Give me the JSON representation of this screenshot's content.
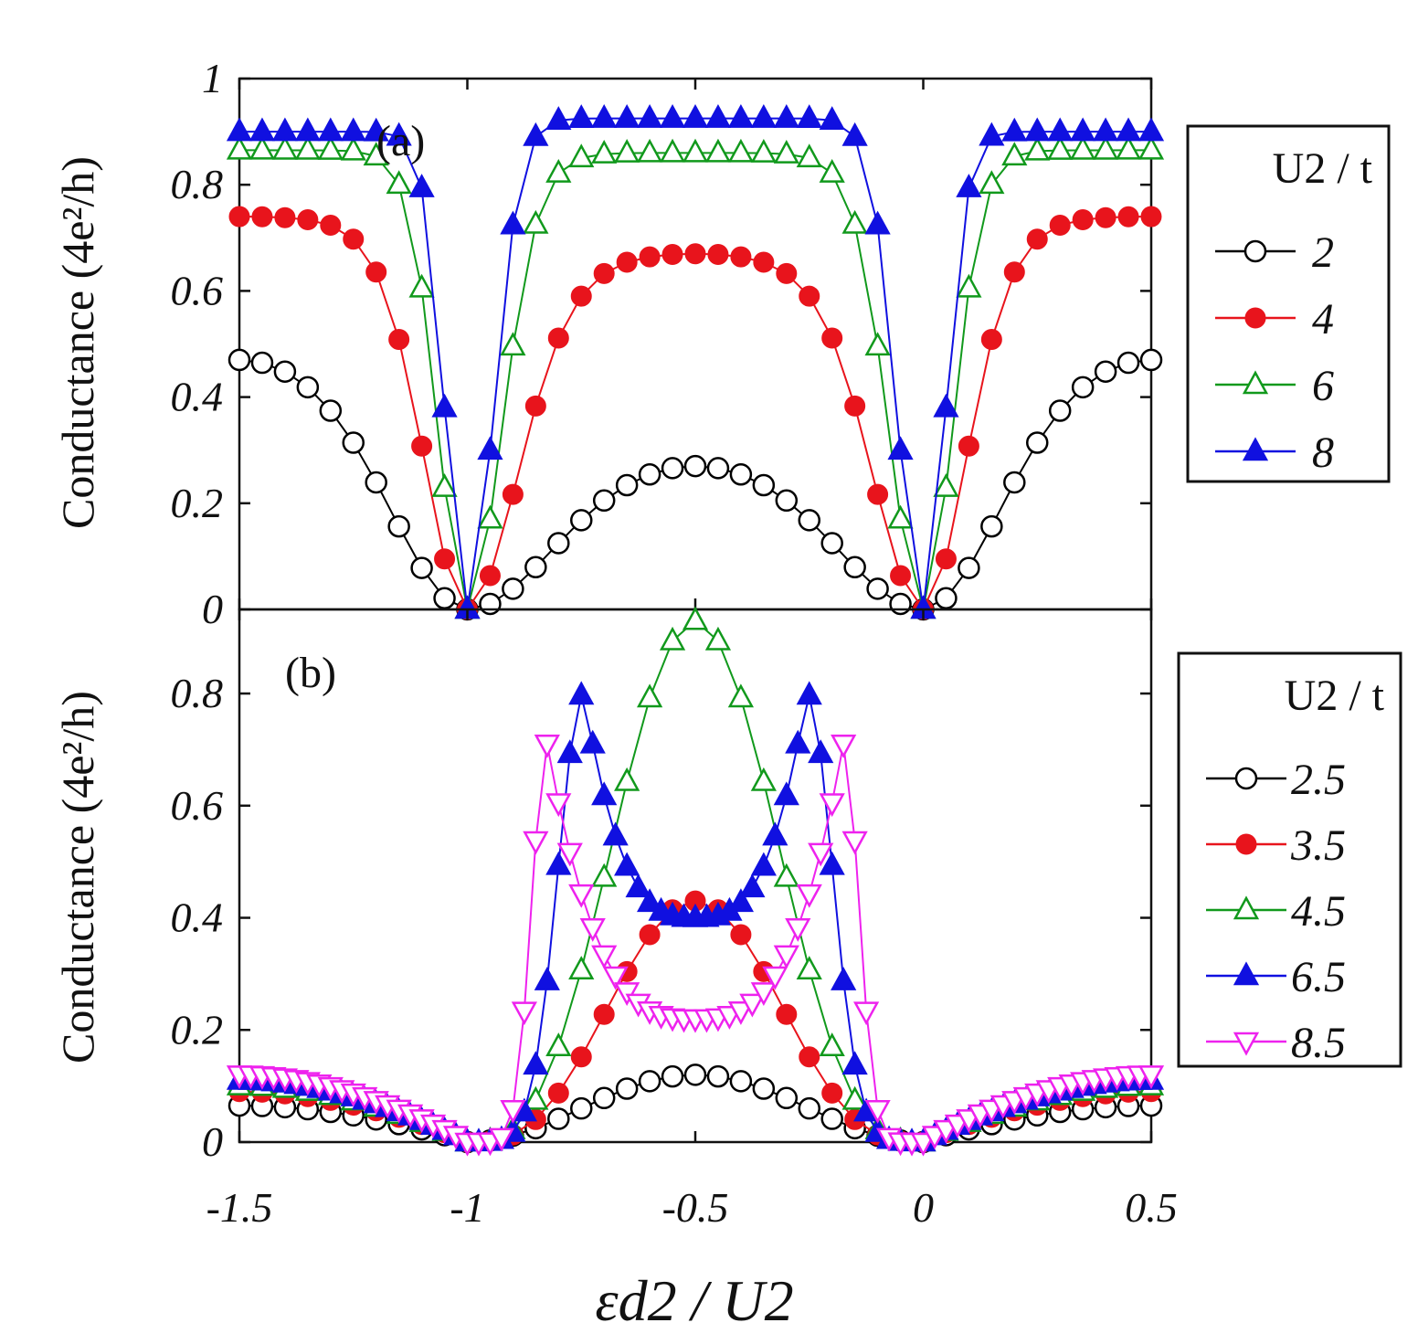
{
  "chart_data": [
    {
      "panel": "(a)",
      "type": "line",
      "xlim": [
        -1.5,
        0.5
      ],
      "ylim": [
        0,
        1
      ],
      "xticks": [
        "-1.5",
        "-1",
        "-0.5",
        "0",
        "0.5"
      ],
      "yticks": [
        "0",
        "0.2",
        "0.4",
        "0.6",
        "0.8",
        "1"
      ],
      "ylabel": "Conductance (4e²/h)",
      "legend_title": "U2 / t",
      "legend_position": "right",
      "series": [
        {
          "name": "2",
          "color": "#000000",
          "marker": "open-circle",
          "U": 2,
          "amp": 0.27
        },
        {
          "name": "4",
          "color": "#e8141c",
          "marker": "filled-circle",
          "U": 4,
          "amp": 0.67
        },
        {
          "name": "6",
          "color": "#11991c",
          "marker": "open-triangle-up",
          "U": 6,
          "amp": 0.86
        },
        {
          "name": "8",
          "color": "#1010e0",
          "marker": "filled-triangle-up",
          "U": 8,
          "amp": 0.925
        }
      ]
    },
    {
      "panel": "(b)",
      "type": "line",
      "xlim": [
        -1.5,
        0.5
      ],
      "ylim": [
        0,
        0.95
      ],
      "xticks": [
        "-1.5",
        "-1",
        "-0.5",
        "0",
        "0.5"
      ],
      "yticks": [
        "0",
        "0.2",
        "0.4",
        "0.6",
        "0.8"
      ],
      "xlabel": "εd2 / U2",
      "ylabel": "Conductance (4e²/h)",
      "legend_title": "U2 / t",
      "legend_position": "right",
      "series": [
        {
          "name": "2.5",
          "color": "#000000",
          "marker": "open-circle",
          "peak": 0.12,
          "edge": 0.065
        },
        {
          "name": "3.5",
          "color": "#e8141c",
          "marker": "filled-circle",
          "peak": 0.43,
          "edge": 0.09
        },
        {
          "name": "4.5",
          "color": "#11991c",
          "marker": "open-triangle-up",
          "peak": 0.93,
          "edge": 0.1
        },
        {
          "name": "6.5",
          "color": "#1010e0",
          "marker": "filled-triangle-up",
          "peak": 0.8,
          "center": 0.4,
          "edge": 0.11
        },
        {
          "name": "8.5",
          "color": "#ee22ee",
          "marker": "open-triangle-down",
          "peak": 0.71,
          "center": 0.22,
          "edge": 0.12
        }
      ]
    }
  ]
}
